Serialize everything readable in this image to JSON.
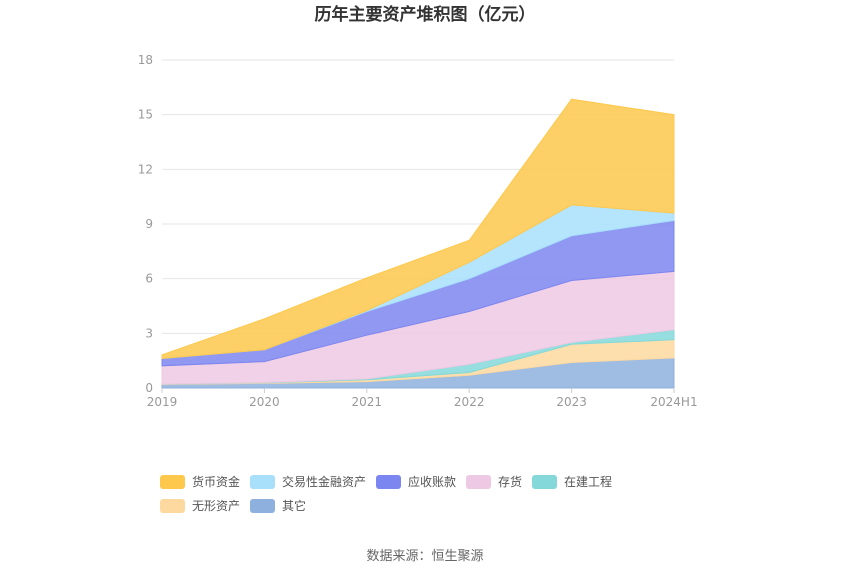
{
  "source": "数据来源：恒生聚源",
  "chart_data": {
    "type": "area",
    "stacked": true,
    "title": "历年主要资产堆积图（亿元）",
    "categories": [
      "2019",
      "2020",
      "2021",
      "2022",
      "2023",
      "2024H1"
    ],
    "ylim": [
      0,
      18
    ],
    "yticks": [
      0,
      3,
      6,
      9,
      12,
      15,
      18
    ],
    "grid": true,
    "legend_position": "bottom-left",
    "series": [
      {
        "name": "其它",
        "color": "#8eb0de",
        "values": [
          0.2,
          0.25,
          0.35,
          0.7,
          1.4,
          1.65
        ]
      },
      {
        "name": "无形资产",
        "color": "#fdd9a0",
        "values": [
          0.02,
          0.03,
          0.1,
          0.15,
          1.0,
          1.0
        ]
      },
      {
        "name": "在建工程",
        "color": "#84d8d9",
        "values": [
          0.0,
          0.02,
          0.05,
          0.45,
          0.1,
          0.55
        ]
      },
      {
        "name": "存货",
        "color": "#eec9e3",
        "values": [
          1.0,
          1.15,
          2.4,
          2.9,
          3.4,
          3.2
        ]
      },
      {
        "name": "应收账款",
        "color": "#7c86f0",
        "values": [
          0.4,
          0.65,
          1.3,
          1.8,
          2.45,
          2.8
        ]
      },
      {
        "name": "交易性金融资产",
        "color": "#a8e0fb",
        "values": [
          0.0,
          0.0,
          0.05,
          0.9,
          1.7,
          0.4
        ]
      },
      {
        "name": "货币资金",
        "color": "#fdc84c",
        "values": [
          0.2,
          1.7,
          1.8,
          1.2,
          5.8,
          5.4
        ]
      }
    ],
    "legend_order": [
      "货币资金",
      "交易性金融资产",
      "应收账款",
      "存货",
      "在建工程",
      "无形资产",
      "其它"
    ]
  }
}
